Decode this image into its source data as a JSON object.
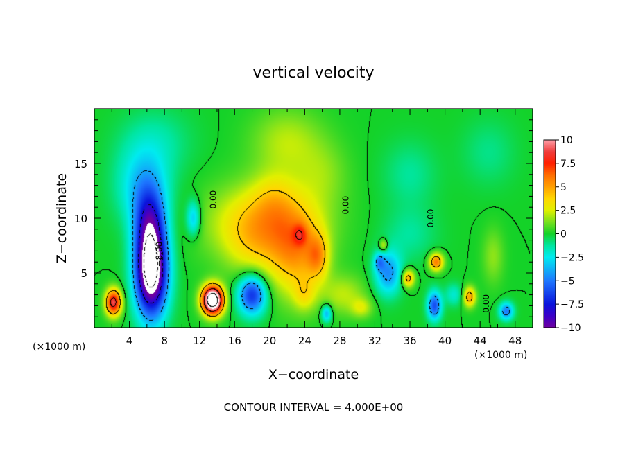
{
  "chart_data": {
    "type": "heatmap",
    "title": "vertical velocity",
    "xlabel": "X−coordinate",
    "ylabel": "Z−coordinate",
    "x_unit_left": "(×1000 m)",
    "x_unit_right": "(×1000 m)",
    "xlim": [
      0,
      50
    ],
    "ylim": [
      0,
      20
    ],
    "xticks": [
      4,
      8,
      12,
      16,
      20,
      24,
      28,
      32,
      36,
      40,
      44,
      48
    ],
    "yticks": [
      5,
      10,
      15
    ],
    "footer": "CONTOUR INTERVAL = 4.000E+00",
    "colorbar": {
      "ticks": [
        "10",
        "7.5",
        "5",
        "2.5",
        "0",
        "−2.5",
        "−5",
        "−7.5",
        "−10"
      ],
      "range": [
        -10,
        10
      ]
    },
    "contour_labels": [
      {
        "text": "0.00",
        "x": 13.9,
        "z": 11.7
      },
      {
        "text": "0.00",
        "x": 29.0,
        "z": 11.2
      },
      {
        "text": "0.00",
        "x": 38.7,
        "z": 10.0
      },
      {
        "text": "0.00",
        "x": 45.0,
        "z": 2.2
      },
      {
        "text": "−8.00",
        "x": 7.7,
        "z": 6.7
      }
    ],
    "features": [
      {
        "x": 19.5,
        "z": 9.5,
        "sx": 6,
        "sz": 3.5,
        "amp": 4.5
      },
      {
        "x": 23,
        "z": 6.5,
        "sx": 3,
        "sz": 4,
        "amp": 4
      },
      {
        "x": 25.5,
        "z": 6.5,
        "sx": 1.2,
        "sz": 2,
        "amp": 3.5
      },
      {
        "x": 23.5,
        "z": 8.5,
        "sx": 0.8,
        "sz": 1,
        "amp": 2.5
      },
      {
        "x": 20.5,
        "z": 12,
        "sx": 2.5,
        "sz": 2.5,
        "amp": 1.5
      },
      {
        "x": 18,
        "z": 7,
        "sx": 3,
        "sz": 3,
        "amp": 1.2
      },
      {
        "x": 28.5,
        "z": 3,
        "sx": 2.5,
        "sz": 1.8,
        "amp": 2
      },
      {
        "x": 24,
        "z": 3,
        "sx": 1.2,
        "sz": 1.5,
        "amp": 2
      },
      {
        "x": 30.5,
        "z": 1.8,
        "sx": 1.2,
        "sz": 0.9,
        "amp": 2
      },
      {
        "x": 6.5,
        "z": 5,
        "sx": 1.8,
        "sz": 4,
        "amp": -13
      },
      {
        "x": 6.3,
        "z": 9.5,
        "sx": 1.8,
        "sz": 3.5,
        "amp": -6
      },
      {
        "x": 5.5,
        "z": 13,
        "sx": 3,
        "sz": 3.5,
        "amp": -3
      },
      {
        "x": 11.3,
        "z": 10,
        "sx": 0.8,
        "sz": 1.6,
        "amp": -3.5
      },
      {
        "x": 13.5,
        "z": 2.5,
        "sx": 1.2,
        "sz": 1.3,
        "amp": 15
      },
      {
        "x": 2.2,
        "z": 2.3,
        "sx": 0.9,
        "sz": 1.2,
        "amp": 9
      },
      {
        "x": 18,
        "z": 3,
        "sx": 1.6,
        "sz": 1.8,
        "amp": -7
      },
      {
        "x": 26.5,
        "z": 1.3,
        "sx": 0.6,
        "sz": 0.8,
        "amp": -4
      },
      {
        "x": 33.5,
        "z": 5,
        "sx": 1.5,
        "sz": 2,
        "amp": -4.5
      },
      {
        "x": 32.5,
        "z": 6,
        "sx": 0.6,
        "sz": 0.8,
        "amp": -3
      },
      {
        "x": 33,
        "z": 7.5,
        "sx": 0.5,
        "sz": 0.6,
        "amp": 3
      },
      {
        "x": 35.8,
        "z": 4.5,
        "sx": 0.7,
        "sz": 0.8,
        "amp": 5
      },
      {
        "x": 38.8,
        "z": 2,
        "sx": 0.8,
        "sz": 1.3,
        "amp": -6
      },
      {
        "x": 39,
        "z": 6,
        "sx": 0.8,
        "sz": 0.8,
        "amp": 6
      },
      {
        "x": 42.8,
        "z": 2.8,
        "sx": 0.7,
        "sz": 0.9,
        "amp": 5
      },
      {
        "x": 47,
        "z": 1.5,
        "sx": 0.8,
        "sz": 0.8,
        "amp": -5
      },
      {
        "x": 45.5,
        "z": 6.5,
        "sx": 1.2,
        "sz": 2.5,
        "amp": 1.5
      },
      {
        "x": 41,
        "z": 3,
        "sx": 1,
        "sz": 1,
        "amp": -2
      },
      {
        "x": 36,
        "z": 8.5,
        "sx": 3,
        "sz": 2.5,
        "amp": -1.2
      },
      {
        "x": 22,
        "z": 17,
        "sx": 4,
        "sz": 3,
        "amp": 2
      },
      {
        "x": 26,
        "z": 14,
        "sx": 3,
        "sz": 3,
        "amp": 1.3
      },
      {
        "x": 7,
        "z": 17,
        "sx": 4,
        "sz": 3,
        "amp": -1.3
      },
      {
        "x": 36,
        "z": 14,
        "sx": 3,
        "sz": 3,
        "amp": -1.2
      },
      {
        "x": 45,
        "z": 16,
        "sx": 3,
        "sz": 3,
        "amp": -1
      }
    ]
  }
}
